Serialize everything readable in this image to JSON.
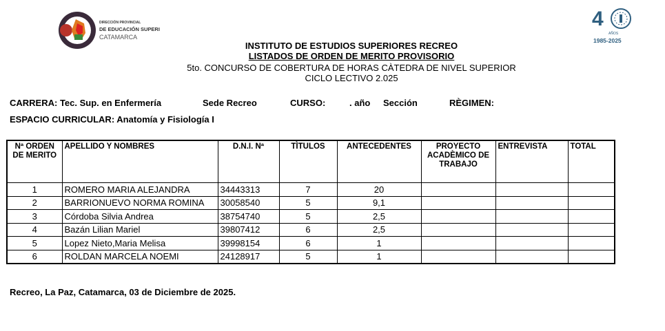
{
  "logos": {
    "left": {
      "line1": "DIRECCIÓN PROVINCIAL",
      "line2": "DE EDUCACIÓN SUPERIOR",
      "line3": "CATAMARCA"
    },
    "right": {
      "number": "4",
      "label": "AÑOS",
      "years": "1985-2025"
    }
  },
  "header": {
    "institution": "INSTITUTO DE ESTUDIOS SUPERIORES RECREO",
    "title": "LISTADOS DE ORDEN DE MERITO PROVISORIO",
    "contest": "5to. CONCURSO DE COBERTURA DE HORAS CÀTEDRA DE NIVEL SUPERIOR",
    "cycle": "CICLO LECTIVO 2.025"
  },
  "meta": {
    "carrera": "CARRERA: Tec. Sup. en Enfermería",
    "sede": "Sede Recreo",
    "curso": "CURSO:",
    "anio": ". año",
    "seccion": "Sección",
    "regimen": "RÈGIMEN:",
    "espacio": "ESPACIO CURRICULAR: Anatomía y Fisiología I"
  },
  "table": {
    "headers": [
      "Nª ORDEN DE MERITO",
      "APELLIDO Y NOMBRES",
      "D.N.I. Nª",
      "TÌTULOS",
      "ANTECEDENTES",
      "PROYECTO ACADÈMICO DE TRABAJO",
      "ENTREVISTA",
      "TOTAL"
    ],
    "rows": [
      [
        "1",
        "ROMERO MARIA ALEJANDRA",
        "34443313",
        "7",
        "20",
        "",
        "",
        ""
      ],
      [
        "2",
        "BARRIONUEVO NORMA ROMINA",
        "30058540",
        "5",
        "9,1",
        "",
        "",
        ""
      ],
      [
        "3",
        "Córdoba Silvia Andrea",
        "38754740",
        "5",
        "2,5",
        "",
        "",
        ""
      ],
      [
        "4",
        "Bazán Lilian Mariel",
        "39807412",
        "6",
        "2,5",
        "",
        "",
        ""
      ],
      [
        "5",
        "Lopez Nieto,Maria Melisa",
        "39998154",
        "6",
        "1",
        "",
        "",
        ""
      ],
      [
        "6",
        "ROLDAN MARCELA NOEMI",
        "24128917",
        "5",
        "1",
        "",
        "",
        ""
      ]
    ]
  },
  "footer": "Recreo, La Paz, Catamarca, 03 de Diciembre de 2025."
}
